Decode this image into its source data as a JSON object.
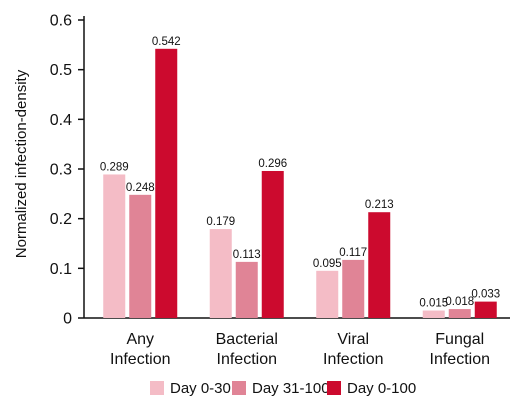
{
  "chart_data": {
    "type": "bar",
    "ylabel": "Normalized infection-density",
    "xlabel": "",
    "ylim": [
      0,
      0.6
    ],
    "yticks": [
      "0",
      "0.1",
      "0.2",
      "0.3",
      "0.4",
      "0.5",
      "0.6"
    ],
    "categories": [
      [
        "Any",
        "Infection"
      ],
      [
        "Bacterial",
        "Infection"
      ],
      [
        "Viral",
        "Infection"
      ],
      [
        "Fungal",
        "Infection"
      ]
    ],
    "series": [
      {
        "name": "Day 0-30",
        "color": "#f4bcc6",
        "values": [
          0.289,
          0.179,
          0.095,
          0.015
        ],
        "labels": [
          "0.289",
          "0.179",
          "0.095",
          "0.015"
        ]
      },
      {
        "name": "Day 31-100",
        "color": "#e08496",
        "values": [
          0.248,
          0.113,
          0.117,
          0.018
        ],
        "labels": [
          "0.248",
          "0.113",
          "0.117",
          "0.018"
        ]
      },
      {
        "name": "Day 0-100",
        "color": "#cc0a2e",
        "values": [
          0.542,
          0.296,
          0.213,
          0.033
        ],
        "labels": [
          "0.542",
          "0.296",
          "0.213",
          "0.033"
        ]
      }
    ],
    "legend_position": "bottom",
    "grid": false
  }
}
